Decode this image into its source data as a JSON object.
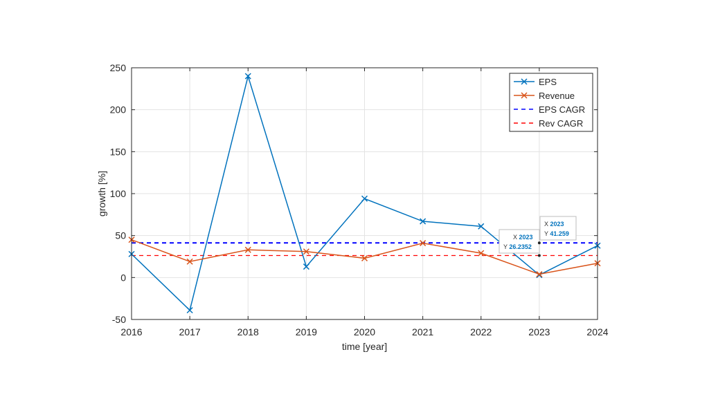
{
  "chart_data": {
    "type": "line",
    "xlabel": "time [year]",
    "ylabel": "growth [%]",
    "xlim": [
      2016,
      2024
    ],
    "ylim": [
      -50,
      250
    ],
    "xticks": [
      2016,
      2017,
      2018,
      2019,
      2020,
      2021,
      2022,
      2023,
      2024
    ],
    "yticks": [
      -50,
      0,
      50,
      100,
      150,
      200,
      250
    ],
    "grid": true,
    "legend_position": "top-right",
    "series": [
      {
        "name": "EPS",
        "style": "solid",
        "marker": "x",
        "color": "#0072BD",
        "x": [
          2016,
          2017,
          2018,
          2019,
          2020,
          2021,
          2022,
          2023,
          2024
        ],
        "y": [
          28,
          -39,
          240,
          13,
          94,
          67,
          61,
          3,
          38
        ]
      },
      {
        "name": "Revenue",
        "style": "solid",
        "marker": "x",
        "color": "#D95319",
        "x": [
          2016,
          2017,
          2018,
          2019,
          2020,
          2021,
          2022,
          2023,
          2024
        ],
        "y": [
          45,
          19,
          33,
          31,
          23,
          41,
          29,
          4,
          17
        ]
      },
      {
        "name": "EPS CAGR",
        "style": "dashed",
        "color": "#0000FF",
        "constant": 41.259
      },
      {
        "name": "Rev  CAGR",
        "style": "dashed",
        "color": "#FF0000",
        "constant": 26.2352
      }
    ],
    "datatips": [
      {
        "x_label": "X",
        "x_value": "2023",
        "y_label": "Y",
        "y_value": "26.2352",
        "x": 2023,
        "y": 26.2352
      },
      {
        "x_label": "X",
        "x_value": "2023",
        "y_label": "Y",
        "y_value": "41.259",
        "x": 2023,
        "y": 41.259
      }
    ]
  }
}
